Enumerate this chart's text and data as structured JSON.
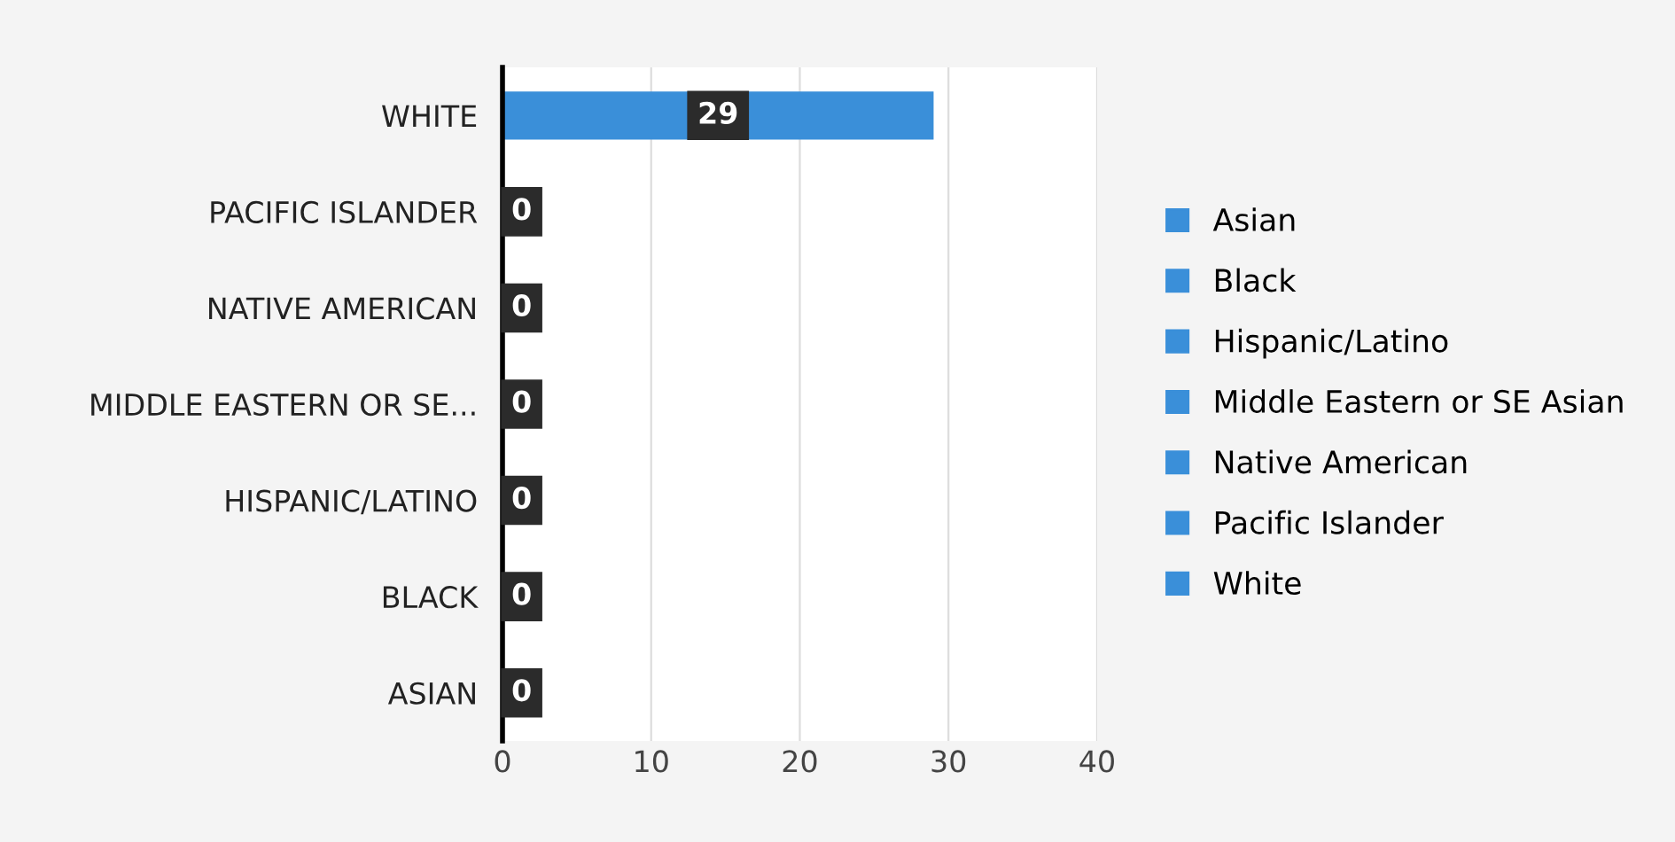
{
  "chart_data": {
    "type": "bar",
    "orientation": "horizontal",
    "categories": [
      "WHITE",
      "PACIFIC ISLANDER",
      "NATIVE AMERICAN",
      "MIDDLE EASTERN OR SE...",
      "HISPANIC/LATINO",
      "BLACK",
      "ASIAN"
    ],
    "series": [
      {
        "name": "Asian",
        "color": "#3a8fd9",
        "values": [
          null,
          null,
          null,
          null,
          null,
          null,
          0
        ]
      },
      {
        "name": "Black",
        "color": "#3a8fd9",
        "values": [
          null,
          null,
          null,
          null,
          null,
          0,
          null
        ]
      },
      {
        "name": "Hispanic/Latino",
        "color": "#3a8fd9",
        "values": [
          null,
          null,
          null,
          null,
          0,
          null,
          null
        ]
      },
      {
        "name": "Middle Eastern or SE Asian",
        "color": "#3a8fd9",
        "values": [
          null,
          null,
          null,
          0,
          null,
          null,
          null
        ]
      },
      {
        "name": "Native American",
        "color": "#3a8fd9",
        "values": [
          null,
          null,
          0,
          null,
          null,
          null,
          null
        ]
      },
      {
        "name": "Pacific Islander",
        "color": "#3a8fd9",
        "values": [
          null,
          0,
          null,
          null,
          null,
          null,
          null
        ]
      },
      {
        "name": "White",
        "color": "#3a8fd9",
        "values": [
          29,
          null,
          null,
          null,
          null,
          null,
          null
        ]
      }
    ],
    "xlim": [
      0,
      40
    ],
    "xticks": [
      0,
      10,
      20,
      30,
      40
    ],
    "grid": "x",
    "legend": "right",
    "data_labels": true
  }
}
